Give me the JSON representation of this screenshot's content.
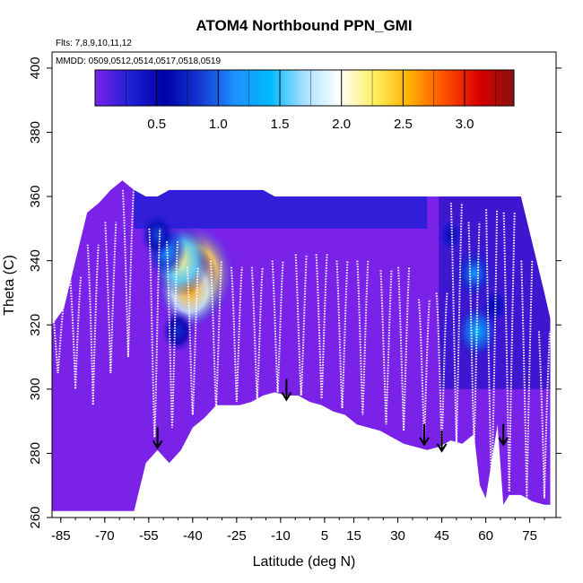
{
  "chart_data": {
    "type": "heatmap",
    "title": "ATOM4 Northbound PPN_GMI",
    "xlabel": "Latitude (deg N)",
    "ylabel": "Theta (C)",
    "annotations": {
      "flights": "Flts: 7,8,9,10,11,12",
      "dates": "MMDD: 0509,0512,0514,0517,0518,0519"
    },
    "xlim": [
      -88,
      84
    ],
    "ylim": [
      260,
      405
    ],
    "xticks": [
      -85,
      -70,
      -55,
      -40,
      -25,
      -10,
      5,
      15,
      30,
      45,
      60,
      75
    ],
    "yticks": [
      260,
      280,
      300,
      320,
      340,
      360,
      380,
      400
    ],
    "colorbar": {
      "range": [
        0,
        3.4
      ],
      "ticks": [
        0.5,
        1.0,
        1.5,
        2.0,
        2.5,
        3.0
      ],
      "tick_labels": [
        "0.5",
        "1.0",
        "1.5",
        "2.0",
        "2.5",
        "3.0"
      ],
      "colors": [
        "#7B22E8",
        "#2020D8",
        "#0000A8",
        "#1438D0",
        "#1E90FF",
        "#00B8FF",
        "#A8E0FF",
        "#FFFFFF",
        "#FFF060",
        "#FFB000",
        "#FF5000",
        "#D80000",
        "#8B1010"
      ]
    },
    "data_coverage": {
      "latitude": [
        -88,
        -84,
        -80,
        -76,
        -72,
        -68,
        -64,
        -60,
        -56,
        -52,
        -48,
        -44,
        -40,
        -36,
        -32,
        -28,
        -24,
        -20,
        -16,
        -12,
        -8,
        -4,
        0,
        4,
        8,
        12,
        16,
        20,
        24,
        28,
        32,
        36,
        40,
        44,
        48,
        52,
        56,
        58,
        60,
        64,
        66,
        68,
        72,
        76,
        80,
        82
      ],
      "theta_top": [
        320,
        325,
        340,
        355,
        358,
        362,
        365,
        362,
        360,
        360,
        362,
        362,
        362,
        362,
        362,
        362,
        362,
        362,
        362,
        360,
        360,
        360,
        360,
        360,
        360,
        360,
        360,
        360,
        360,
        360,
        360,
        360,
        360,
        360,
        360,
        360,
        360,
        360,
        360,
        360,
        360,
        360,
        360,
        345,
        330,
        322
      ],
      "theta_bottom": [
        262,
        262,
        262,
        262,
        262,
        262,
        262,
        262,
        277,
        281,
        277,
        281,
        288,
        291,
        295,
        295,
        295,
        296,
        298,
        299,
        298,
        298,
        296,
        295,
        293,
        292,
        289,
        288,
        287,
        285,
        283,
        282,
        281,
        282,
        284,
        283,
        286,
        270,
        266,
        289,
        264,
        267,
        267,
        265,
        264,
        264
      ]
    },
    "high_values": [
      {
        "lat": -39,
        "theta": 336,
        "value": 3.3
      },
      {
        "lat": -41,
        "theta": 331,
        "value": 2.6
      },
      {
        "lat": -44,
        "theta": 340,
        "value": 2.2
      },
      {
        "lat": -49,
        "theta": 343,
        "value": 1.2
      },
      {
        "lat": -52,
        "theta": 348,
        "value": 0.9
      },
      {
        "lat": -45,
        "theta": 318,
        "value": 0.8
      },
      {
        "lat": 56,
        "theta": 336,
        "value": 1.2
      },
      {
        "lat": 57,
        "theta": 318,
        "value": 1.4
      },
      {
        "lat": 63,
        "theta": 326,
        "value": 0.6
      },
      {
        "lat": 48,
        "theta": 348,
        "value": 0.5
      }
    ],
    "arrows": [
      {
        "lat": -52,
        "theta": 282
      },
      {
        "lat": -8,
        "theta": 297
      },
      {
        "lat": 39,
        "theta": 283
      },
      {
        "lat": 45,
        "theta": 281
      },
      {
        "lat": 66,
        "theta": 283
      }
    ],
    "profiles": [
      {
        "lat": -86,
        "theta": [
          305,
          312,
          320,
          326
        ]
      },
      {
        "lat": -80,
        "theta": [
          300,
          315,
          328,
          335
        ]
      },
      {
        "lat": -74,
        "theta": [
          295,
          318,
          335,
          345
        ]
      },
      {
        "lat": -68,
        "theta": [
          305,
          322,
          340,
          352
        ]
      },
      {
        "lat": -62,
        "theta": [
          310,
          330,
          352,
          362
        ]
      },
      {
        "lat": -53,
        "theta": [
          285,
          300,
          340,
          350
        ]
      },
      {
        "lat": -47,
        "theta": [
          288,
          305,
          335,
          346
        ]
      },
      {
        "lat": -40,
        "theta": [
          292,
          303,
          330,
          338
        ]
      },
      {
        "lat": -32,
        "theta": [
          294,
          306,
          330,
          340
        ]
      },
      {
        "lat": -25,
        "theta": [
          296,
          310,
          332,
          338
        ]
      },
      {
        "lat": -18,
        "theta": [
          297,
          308,
          330,
          338
        ]
      },
      {
        "lat": -11,
        "theta": [
          299,
          310,
          332,
          340
        ]
      },
      {
        "lat": -3,
        "theta": [
          298,
          308,
          330,
          342
        ]
      },
      {
        "lat": 4,
        "theta": [
          297,
          310,
          332,
          342
        ]
      },
      {
        "lat": 11,
        "theta": [
          294,
          306,
          330,
          340
        ]
      },
      {
        "lat": 18,
        "theta": [
          292,
          306,
          330,
          340
        ]
      },
      {
        "lat": 26,
        "theta": [
          289,
          304,
          325,
          337
        ]
      },
      {
        "lat": 32,
        "theta": [
          287,
          305,
          325,
          338
        ]
      },
      {
        "lat": 39,
        "theta": [
          284,
          300,
          322,
          328
        ]
      },
      {
        "lat": 45,
        "theta": [
          282,
          300,
          325,
          330
        ]
      },
      {
        "lat": 50,
        "theta": [
          283,
          305,
          340,
          358
        ]
      },
      {
        "lat": 56,
        "theta": [
          282,
          300,
          335,
          352
        ]
      },
      {
        "lat": 62,
        "theta": [
          268,
          290,
          320,
          356
        ]
      },
      {
        "lat": 68,
        "theta": [
          268,
          300,
          330,
          355
        ]
      },
      {
        "lat": 74,
        "theta": [
          266,
          295,
          320,
          340
        ]
      },
      {
        "lat": 80,
        "theta": [
          266,
          290,
          305,
          318
        ]
      }
    ]
  }
}
